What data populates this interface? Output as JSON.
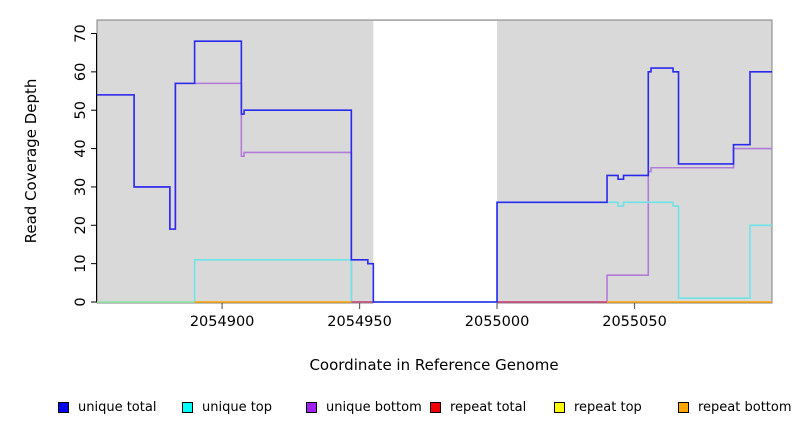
{
  "chart_data": {
    "type": "line",
    "subtype": "step",
    "title": "",
    "xlabel": "Coordinate in Reference Genome",
    "ylabel": "Read Coverage Depth",
    "xlim": [
      2054854.5,
      2055100
    ],
    "ylim": [
      0,
      70
    ],
    "grid": false,
    "legend_position": "bottom",
    "x_ticks": [
      {
        "value": 2054900,
        "label": "2054900"
      },
      {
        "value": 2054950,
        "label": "2054950"
      },
      {
        "value": 2055000,
        "label": "2055000"
      },
      {
        "value": 2055050,
        "label": "2055050"
      }
    ],
    "y_ticks": [
      {
        "value": 0,
        "label": "0"
      },
      {
        "value": 10,
        "label": "10"
      },
      {
        "value": 20,
        "label": "20"
      },
      {
        "value": 30,
        "label": "30"
      },
      {
        "value": 40,
        "label": "40"
      },
      {
        "value": 50,
        "label": "50"
      },
      {
        "value": 60,
        "label": "60"
      },
      {
        "value": 70,
        "label": "70"
      }
    ],
    "background": {
      "shaded_color": "#d9d9d9",
      "shaded_border_color": "#808080",
      "gap_color": "#ffffff",
      "shaded_regions": [
        [
          2054854.5,
          2054955
        ],
        [
          2055000,
          2055100
        ]
      ],
      "gap_region": [
        2054955,
        2055000
      ]
    },
    "series": [
      {
        "name": "unique total",
        "line_color": "#2a2aee",
        "legend_color": "#0000ee",
        "kind": "steps",
        "steps": [
          [
            2054854.5,
            54
          ],
          [
            2054868,
            30
          ],
          [
            2054881,
            19
          ],
          [
            2054883,
            57
          ],
          [
            2054890,
            68
          ],
          [
            2054907,
            49
          ],
          [
            2054908,
            50
          ],
          [
            2054947,
            11
          ],
          [
            2054953,
            10
          ],
          [
            2054955,
            0
          ],
          [
            2055000,
            26
          ],
          [
            2055040,
            33
          ],
          [
            2055044,
            32
          ],
          [
            2055046,
            33
          ],
          [
            2055055,
            60
          ],
          [
            2055056,
            61
          ],
          [
            2055064,
            60
          ],
          [
            2055066,
            36
          ],
          [
            2055086,
            41
          ],
          [
            2055092,
            60
          ],
          [
            2055100,
            60
          ]
        ]
      },
      {
        "name": "unique top",
        "line_color": "#6fe4e8",
        "legend_color": "#00ffff",
        "kind": "steps",
        "steps": [
          [
            2054854.5,
            0
          ],
          [
            2054890,
            11
          ],
          [
            2054947,
            0
          ],
          [
            2055000,
            26
          ],
          [
            2055044,
            25
          ],
          [
            2055046,
            26
          ],
          [
            2055064,
            25
          ],
          [
            2055066,
            1
          ],
          [
            2055092,
            20
          ],
          [
            2055100,
            20
          ]
        ]
      },
      {
        "name": "unique bottom",
        "line_color": "#b27bd8",
        "legend_color": "#a020f0",
        "kind": "steps",
        "steps": [
          [
            2054854.5,
            54
          ],
          [
            2054868,
            30
          ],
          [
            2054881,
            19
          ],
          [
            2054883,
            57
          ],
          [
            2054907,
            38
          ],
          [
            2054908,
            39
          ],
          [
            2054947,
            0
          ],
          [
            2055040,
            7
          ],
          [
            2055055,
            34
          ],
          [
            2055056,
            35
          ],
          [
            2055086,
            40
          ],
          [
            2055100,
            40
          ]
        ]
      },
      {
        "name": "repeat total",
        "line_color": "#d2426e",
        "legend_color": "#ee0000",
        "kind": "segments",
        "value": 0,
        "segments": [
          [
            2054947,
            2054955
          ],
          [
            2055000,
            2055040
          ]
        ]
      },
      {
        "name": "repeat top",
        "line_color": "#9de69d",
        "legend_color": "#ffff00",
        "kind": "segments",
        "value": 0,
        "segments": [
          [
            2054854.5,
            2054890
          ]
        ]
      },
      {
        "name": "repeat bottom",
        "line_color": "#ffa500",
        "legend_color": "#ffa500",
        "kind": "segments",
        "value": 0,
        "segments": [
          [
            2054890,
            2054947
          ],
          [
            2055040,
            2055100
          ]
        ]
      }
    ]
  }
}
